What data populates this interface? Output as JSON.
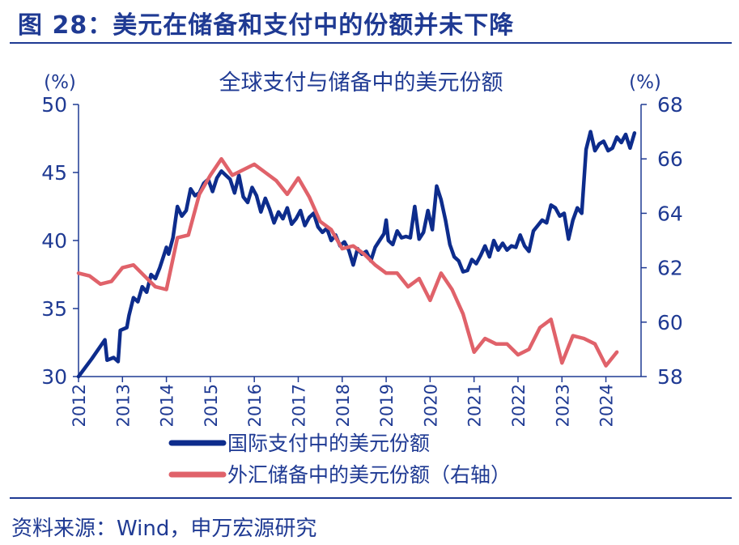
{
  "figure_title": "图 28：美元在储备和支付中的份额并未下降",
  "source": "资料来源：Wind，申万宏源研究",
  "colors": {
    "brand": "#1f3a93",
    "payments": "#0d2c8c",
    "reserves": "#e0626a",
    "axis": "#1f3a93"
  },
  "chart_data": {
    "type": "line",
    "title": "全球支付与储备中的美元份额",
    "left_unit": "(%)",
    "right_unit": "(%)",
    "left_ylim": [
      30,
      50
    ],
    "right_ylim": [
      58,
      68
    ],
    "left_ticks": [
      30,
      35,
      40,
      45,
      50
    ],
    "right_ticks": [
      58,
      60,
      62,
      64,
      66,
      68
    ],
    "xlim": [
      2012,
      2024.8
    ],
    "x_ticks": [
      "2012",
      "2013",
      "2014",
      "2015",
      "2016",
      "2017",
      "2018",
      "2019",
      "2020",
      "2021",
      "2022",
      "2023",
      "2024"
    ],
    "series": [
      {
        "name": "国际支付中的美元份额",
        "axis": "left",
        "points": [
          [
            2012.0,
            30.0
          ],
          [
            2012.3,
            31.3
          ],
          [
            2012.6,
            32.7
          ],
          [
            2012.65,
            31.2
          ],
          [
            2012.8,
            31.4
          ],
          [
            2012.9,
            31.1
          ],
          [
            2012.95,
            33.4
          ],
          [
            2013.1,
            33.6
          ],
          [
            2013.15,
            34.5
          ],
          [
            2013.25,
            35.8
          ],
          [
            2013.35,
            35.5
          ],
          [
            2013.45,
            36.6
          ],
          [
            2013.55,
            36.2
          ],
          [
            2013.65,
            37.5
          ],
          [
            2013.75,
            37.2
          ],
          [
            2013.85,
            38.0
          ],
          [
            2013.95,
            39.0
          ],
          [
            2014.0,
            39.5
          ],
          [
            2014.05,
            39.0
          ],
          [
            2014.15,
            40.2
          ],
          [
            2014.25,
            42.5
          ],
          [
            2014.35,
            41.8
          ],
          [
            2014.45,
            42.2
          ],
          [
            2014.55,
            43.8
          ],
          [
            2014.65,
            43.3
          ],
          [
            2014.75,
            43.5
          ],
          [
            2014.85,
            44.2
          ],
          [
            2014.95,
            44.5
          ],
          [
            2015.05,
            43.6
          ],
          [
            2015.15,
            44.6
          ],
          [
            2015.25,
            45.1
          ],
          [
            2015.35,
            44.8
          ],
          [
            2015.45,
            44.5
          ],
          [
            2015.55,
            43.5
          ],
          [
            2015.65,
            44.8
          ],
          [
            2015.75,
            43.2
          ],
          [
            2015.85,
            42.8
          ],
          [
            2015.95,
            43.9
          ],
          [
            2016.05,
            43.3
          ],
          [
            2016.15,
            42.1
          ],
          [
            2016.25,
            43.1
          ],
          [
            2016.35,
            42.3
          ],
          [
            2016.45,
            41.3
          ],
          [
            2016.55,
            42.1
          ],
          [
            2016.65,
            41.6
          ],
          [
            2016.75,
            42.4
          ],
          [
            2016.85,
            41.2
          ],
          [
            2016.95,
            41.6
          ],
          [
            2017.05,
            42.2
          ],
          [
            2017.15,
            41.1
          ],
          [
            2017.25,
            41.7
          ],
          [
            2017.35,
            42.0
          ],
          [
            2017.45,
            41.0
          ],
          [
            2017.55,
            40.6
          ],
          [
            2017.65,
            40.9
          ],
          [
            2017.75,
            40.0
          ],
          [
            2017.85,
            40.4
          ],
          [
            2017.95,
            39.6
          ],
          [
            2018.05,
            39.9
          ],
          [
            2018.15,
            39.3
          ],
          [
            2018.25,
            38.2
          ],
          [
            2018.35,
            39.4
          ],
          [
            2018.45,
            39.0
          ],
          [
            2018.55,
            39.2
          ],
          [
            2018.65,
            38.5
          ],
          [
            2018.75,
            39.5
          ],
          [
            2018.85,
            40.0
          ],
          [
            2018.95,
            40.5
          ],
          [
            2019.0,
            41.5
          ],
          [
            2019.05,
            40.0
          ],
          [
            2019.15,
            39.7
          ],
          [
            2019.25,
            40.7
          ],
          [
            2019.35,
            40.2
          ],
          [
            2019.45,
            40.3
          ],
          [
            2019.55,
            40.2
          ],
          [
            2019.65,
            42.5
          ],
          [
            2019.75,
            40.1
          ],
          [
            2019.85,
            40.6
          ],
          [
            2019.95,
            42.2
          ],
          [
            2020.05,
            40.8
          ],
          [
            2020.15,
            44.0
          ],
          [
            2020.25,
            43.0
          ],
          [
            2020.35,
            41.5
          ],
          [
            2020.45,
            39.7
          ],
          [
            2020.55,
            38.8
          ],
          [
            2020.65,
            38.5
          ],
          [
            2020.75,
            37.7
          ],
          [
            2020.85,
            37.8
          ],
          [
            2020.95,
            38.6
          ],
          [
            2021.05,
            38.3
          ],
          [
            2021.15,
            38.9
          ],
          [
            2021.25,
            39.6
          ],
          [
            2021.35,
            38.8
          ],
          [
            2021.45,
            40.0
          ],
          [
            2021.55,
            39.3
          ],
          [
            2021.65,
            39.8
          ],
          [
            2021.75,
            39.3
          ],
          [
            2021.85,
            39.6
          ],
          [
            2021.95,
            39.5
          ],
          [
            2022.05,
            40.4
          ],
          [
            2022.15,
            39.6
          ],
          [
            2022.25,
            39.2
          ],
          [
            2022.35,
            40.7
          ],
          [
            2022.45,
            41.1
          ],
          [
            2022.55,
            41.5
          ],
          [
            2022.65,
            41.3
          ],
          [
            2022.75,
            42.6
          ],
          [
            2022.85,
            42.4
          ],
          [
            2022.95,
            41.8
          ],
          [
            2023.05,
            42.0
          ],
          [
            2023.15,
            40.1
          ],
          [
            2023.25,
            41.5
          ],
          [
            2023.35,
            42.4
          ],
          [
            2023.45,
            42.0
          ],
          [
            2023.55,
            46.7
          ],
          [
            2023.65,
            48.0
          ],
          [
            2023.75,
            46.6
          ],
          [
            2023.85,
            47.1
          ],
          [
            2023.95,
            47.3
          ],
          [
            2024.05,
            46.6
          ],
          [
            2024.15,
            46.8
          ],
          [
            2024.25,
            47.6
          ],
          [
            2024.35,
            47.2
          ],
          [
            2024.45,
            47.8
          ],
          [
            2024.55,
            46.8
          ],
          [
            2024.65,
            47.9
          ]
        ]
      },
      {
        "name": "外汇储备中的美元份额（右轴）",
        "axis": "right",
        "points": [
          [
            2012.0,
            61.8
          ],
          [
            2012.25,
            61.7
          ],
          [
            2012.5,
            61.4
          ],
          [
            2012.75,
            61.5
          ],
          [
            2013.0,
            62.0
          ],
          [
            2013.25,
            62.1
          ],
          [
            2013.5,
            61.7
          ],
          [
            2013.75,
            61.3
          ],
          [
            2014.0,
            61.2
          ],
          [
            2014.25,
            63.1
          ],
          [
            2014.5,
            63.2
          ],
          [
            2014.75,
            64.7
          ],
          [
            2015.0,
            65.4
          ],
          [
            2015.25,
            66.0
          ],
          [
            2015.5,
            65.4
          ],
          [
            2015.75,
            65.6
          ],
          [
            2016.0,
            65.8
          ],
          [
            2016.25,
            65.5
          ],
          [
            2016.5,
            65.2
          ],
          [
            2016.75,
            64.7
          ],
          [
            2017.0,
            65.3
          ],
          [
            2017.25,
            64.6
          ],
          [
            2017.5,
            63.7
          ],
          [
            2017.75,
            63.4
          ],
          [
            2018.0,
            62.7
          ],
          [
            2018.25,
            62.8
          ],
          [
            2018.5,
            62.5
          ],
          [
            2018.75,
            62.1
          ],
          [
            2019.0,
            61.8
          ],
          [
            2019.25,
            61.8
          ],
          [
            2019.5,
            61.3
          ],
          [
            2019.75,
            61.6
          ],
          [
            2020.0,
            60.8
          ],
          [
            2020.25,
            61.8
          ],
          [
            2020.5,
            61.2
          ],
          [
            2020.75,
            60.3
          ],
          [
            2021.0,
            58.9
          ],
          [
            2021.25,
            59.4
          ],
          [
            2021.5,
            59.2
          ],
          [
            2021.75,
            59.2
          ],
          [
            2022.0,
            58.8
          ],
          [
            2022.25,
            59.0
          ],
          [
            2022.5,
            59.8
          ],
          [
            2022.75,
            60.1
          ],
          [
            2023.0,
            58.5
          ],
          [
            2023.25,
            59.5
          ],
          [
            2023.5,
            59.4
          ],
          [
            2023.75,
            59.2
          ],
          [
            2024.0,
            58.4
          ],
          [
            2024.25,
            58.9
          ]
        ]
      }
    ]
  }
}
